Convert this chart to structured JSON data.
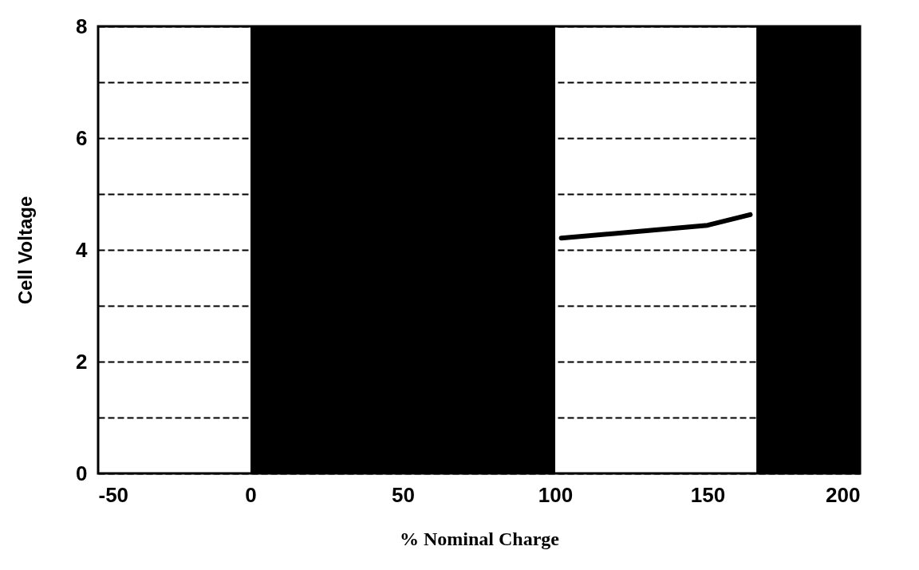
{
  "chart_data": {
    "type": "line",
    "xlabel": "% Nominal Charge",
    "ylabel": "Cell Voltage",
    "x": [
      102,
      150,
      164
    ],
    "series": [
      {
        "color": "#000000",
        "values": [
          4.21,
          4.44,
          4.63
        ]
      }
    ],
    "bands": [
      {
        "axis": "x",
        "from": 0,
        "to": 100,
        "color": "#000000"
      },
      {
        "axis": "x",
        "from": 166,
        "to": 200,
        "color": "#000000"
      }
    ],
    "xlim": [
      -50,
      200
    ],
    "xticks": [
      -50,
      0,
      50,
      100,
      150,
      200
    ],
    "ylim": [
      0,
      8
    ],
    "yticks": [
      0,
      {
        "value": 1,
        "label": null
      },
      2,
      {
        "value": 3,
        "label": null
      },
      4,
      {
        "value": 5,
        "label": null
      },
      6,
      {
        "value": 7,
        "label": null
      },
      8
    ],
    "grid": "y",
    "line_style": "solid",
    "marker": "none"
  }
}
